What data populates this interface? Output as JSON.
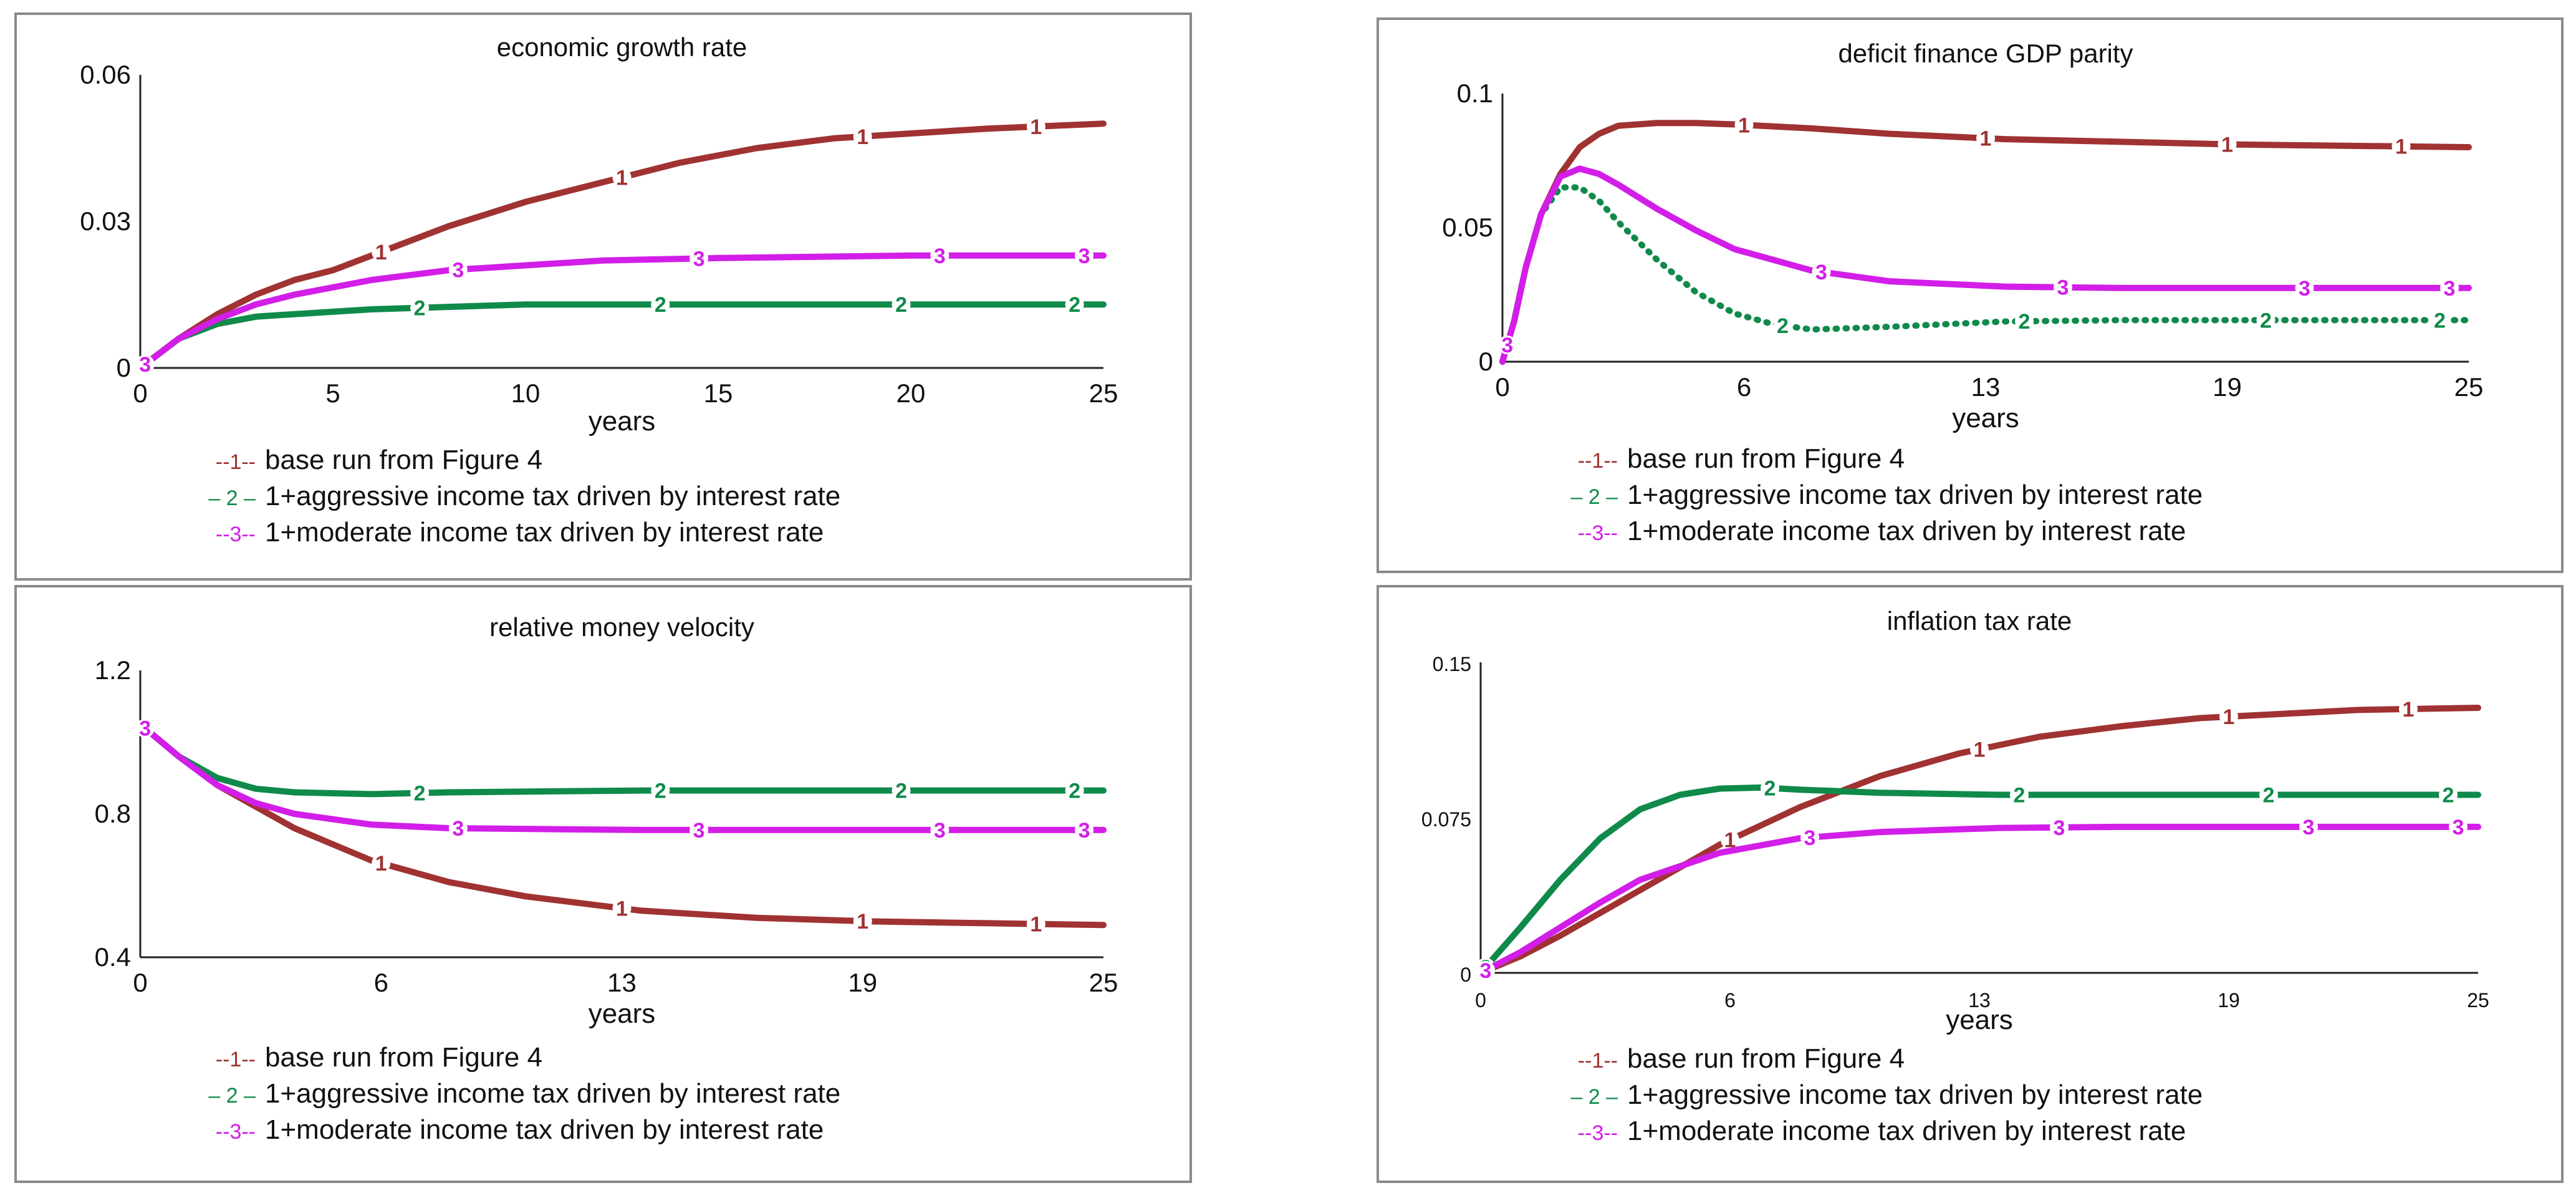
{
  "colors": {
    "series_1": "#a03232",
    "series_2": "#0f8a4a",
    "series_3": "#d21ee8"
  },
  "legend_samples": [
    "--1--",
    "– 2 –",
    "--3--"
  ],
  "chart_data": [
    {
      "type": "line",
      "title": "economic growth rate",
      "xlabel": "years",
      "ylabel": "",
      "xlim": [
        0,
        25
      ],
      "ylim": [
        0,
        0.06
      ],
      "xticks": [
        "0",
        "5",
        "10",
        "15",
        "20",
        "25"
      ],
      "yticks": [
        "0",
        "0.03",
        "0.06"
      ],
      "grid": false,
      "legend_position": "bottom",
      "series": [
        {
          "name": "base run from Figure 4",
          "marker": "1",
          "x": [
            0,
            1,
            2,
            3,
            4,
            5,
            6,
            8,
            10,
            12,
            14,
            16,
            18,
            20,
            22,
            25
          ],
          "y": [
            0,
            0.006,
            0.011,
            0.015,
            0.018,
            0.02,
            0.023,
            0.029,
            0.034,
            0.038,
            0.042,
            0.045,
            0.047,
            0.048,
            0.049,
            0.05
          ]
        },
        {
          "name": "1+aggressive income tax driven by interest rate",
          "marker": "2",
          "x": [
            0,
            1,
            2,
            3,
            4,
            6,
            8,
            10,
            15,
            20,
            25
          ],
          "y": [
            0,
            0.006,
            0.009,
            0.0105,
            0.011,
            0.012,
            0.0125,
            0.013,
            0.013,
            0.013,
            0.013
          ]
        },
        {
          "name": "1+moderate income tax driven by interest rate",
          "marker": "3",
          "x": [
            0,
            1,
            2,
            3,
            4,
            6,
            8,
            10,
            12,
            15,
            20,
            25
          ],
          "y": [
            0,
            0.006,
            0.01,
            0.013,
            0.015,
            0.018,
            0.02,
            0.021,
            0.022,
            0.0225,
            0.023,
            0.023
          ]
        }
      ]
    },
    {
      "type": "line",
      "title": "deficit finance GDP parity",
      "xlabel": "years",
      "ylabel": "",
      "xlim": [
        0,
        25
      ],
      "ylim": [
        0,
        0.1
      ],
      "xticks": [
        "0",
        "6",
        "13",
        "19",
        "25"
      ],
      "yticks": [
        "0",
        "0.05",
        "0.1"
      ],
      "grid": false,
      "legend_position": "bottom",
      "series": [
        {
          "name": "base run from Figure 4",
          "marker": "1",
          "x": [
            0,
            0.3,
            0.6,
            1,
            1.5,
            2,
            2.5,
            3,
            4,
            5,
            6,
            8,
            10,
            13,
            16,
            19,
            22,
            25
          ],
          "y": [
            0,
            0.015,
            0.035,
            0.055,
            0.07,
            0.08,
            0.085,
            0.088,
            0.089,
            0.089,
            0.0885,
            0.087,
            0.085,
            0.083,
            0.082,
            0.081,
            0.0805,
            0.08
          ]
        },
        {
          "name": "1+aggressive income tax driven by interest rate",
          "marker": "2",
          "x": [
            0,
            0.3,
            0.6,
            1,
            1.5,
            2,
            2.5,
            3,
            4,
            5,
            6,
            7,
            8,
            10,
            13,
            16,
            19,
            25
          ],
          "y": [
            0,
            0.015,
            0.035,
            0.055,
            0.065,
            0.065,
            0.06,
            0.052,
            0.038,
            0.026,
            0.018,
            0.014,
            0.012,
            0.013,
            0.015,
            0.0155,
            0.0155,
            0.0155
          ]
        },
        {
          "name": "1+moderate income tax driven by interest rate",
          "marker": "3",
          "x": [
            0,
            0.3,
            0.6,
            1,
            1.5,
            2,
            2.5,
            3,
            4,
            5,
            6,
            8,
            10,
            13,
            16,
            19,
            25
          ],
          "y": [
            0,
            0.015,
            0.035,
            0.055,
            0.069,
            0.072,
            0.07,
            0.066,
            0.057,
            0.049,
            0.042,
            0.034,
            0.03,
            0.028,
            0.0275,
            0.0275,
            0.0275
          ]
        }
      ]
    },
    {
      "type": "line",
      "title": "relative money velocity",
      "xlabel": "years",
      "ylabel": "",
      "xlim": [
        0,
        25
      ],
      "ylim": [
        0.4,
        1.2
      ],
      "xticks": [
        "0",
        "6",
        "13",
        "19",
        "25"
      ],
      "yticks": [
        "0.4",
        "0.8",
        "1.2"
      ],
      "grid": false,
      "legend_position": "bottom",
      "series": [
        {
          "name": "base run from Figure 4",
          "marker": "1",
          "x": [
            0,
            1,
            2,
            4,
            6,
            8,
            10,
            13,
            16,
            19,
            22,
            25
          ],
          "y": [
            1.05,
            0.96,
            0.88,
            0.76,
            0.67,
            0.61,
            0.57,
            0.53,
            0.51,
            0.5,
            0.495,
            0.49
          ]
        },
        {
          "name": "1+aggressive income tax driven by interest rate",
          "marker": "2",
          "x": [
            0,
            1,
            2,
            3,
            4,
            6,
            8,
            13,
            19,
            25
          ],
          "y": [
            1.05,
            0.96,
            0.9,
            0.87,
            0.86,
            0.855,
            0.86,
            0.865,
            0.865,
            0.865
          ]
        },
        {
          "name": "1+moderate income tax driven by interest rate",
          "marker": "3",
          "x": [
            0,
            1,
            2,
            3,
            4,
            6,
            8,
            13,
            19,
            25
          ],
          "y": [
            1.05,
            0.96,
            0.88,
            0.83,
            0.8,
            0.77,
            0.76,
            0.755,
            0.755,
            0.755
          ]
        }
      ]
    },
    {
      "type": "line",
      "title": "inflation tax rate",
      "xlabel": "years",
      "ylabel": "",
      "xlim": [
        0,
        25
      ],
      "ylim": [
        0,
        0.15
      ],
      "xticks": [
        "0",
        "6",
        "13",
        "19",
        "25"
      ],
      "yticks": [
        "0",
        "0.075",
        "0.15"
      ],
      "grid": false,
      "legend_position": "bottom",
      "series": [
        {
          "name": "base run from Figure 4",
          "marker": "1",
          "x": [
            0,
            1,
            2,
            4,
            6,
            8,
            10,
            12,
            14,
            16,
            18,
            20,
            22,
            25
          ],
          "y": [
            0,
            0.008,
            0.018,
            0.04,
            0.062,
            0.08,
            0.095,
            0.106,
            0.114,
            0.119,
            0.123,
            0.125,
            0.127,
            0.128
          ]
        },
        {
          "name": "1+aggressive income tax driven by interest rate",
          "marker": "2",
          "x": [
            0,
            1,
            2,
            3,
            4,
            5,
            6,
            7,
            8,
            10,
            13,
            16,
            19,
            25
          ],
          "y": [
            0,
            0.022,
            0.045,
            0.065,
            0.079,
            0.086,
            0.089,
            0.0895,
            0.0885,
            0.087,
            0.086,
            0.086,
            0.086,
            0.086
          ]
        },
        {
          "name": "1+moderate income tax driven by interest rate",
          "marker": "3",
          "x": [
            0,
            1,
            2,
            3,
            4,
            6,
            8,
            10,
            13,
            16,
            19,
            25
          ],
          "y": [
            0,
            0.01,
            0.022,
            0.034,
            0.045,
            0.058,
            0.065,
            0.068,
            0.07,
            0.0705,
            0.0705,
            0.0705
          ]
        }
      ]
    }
  ]
}
